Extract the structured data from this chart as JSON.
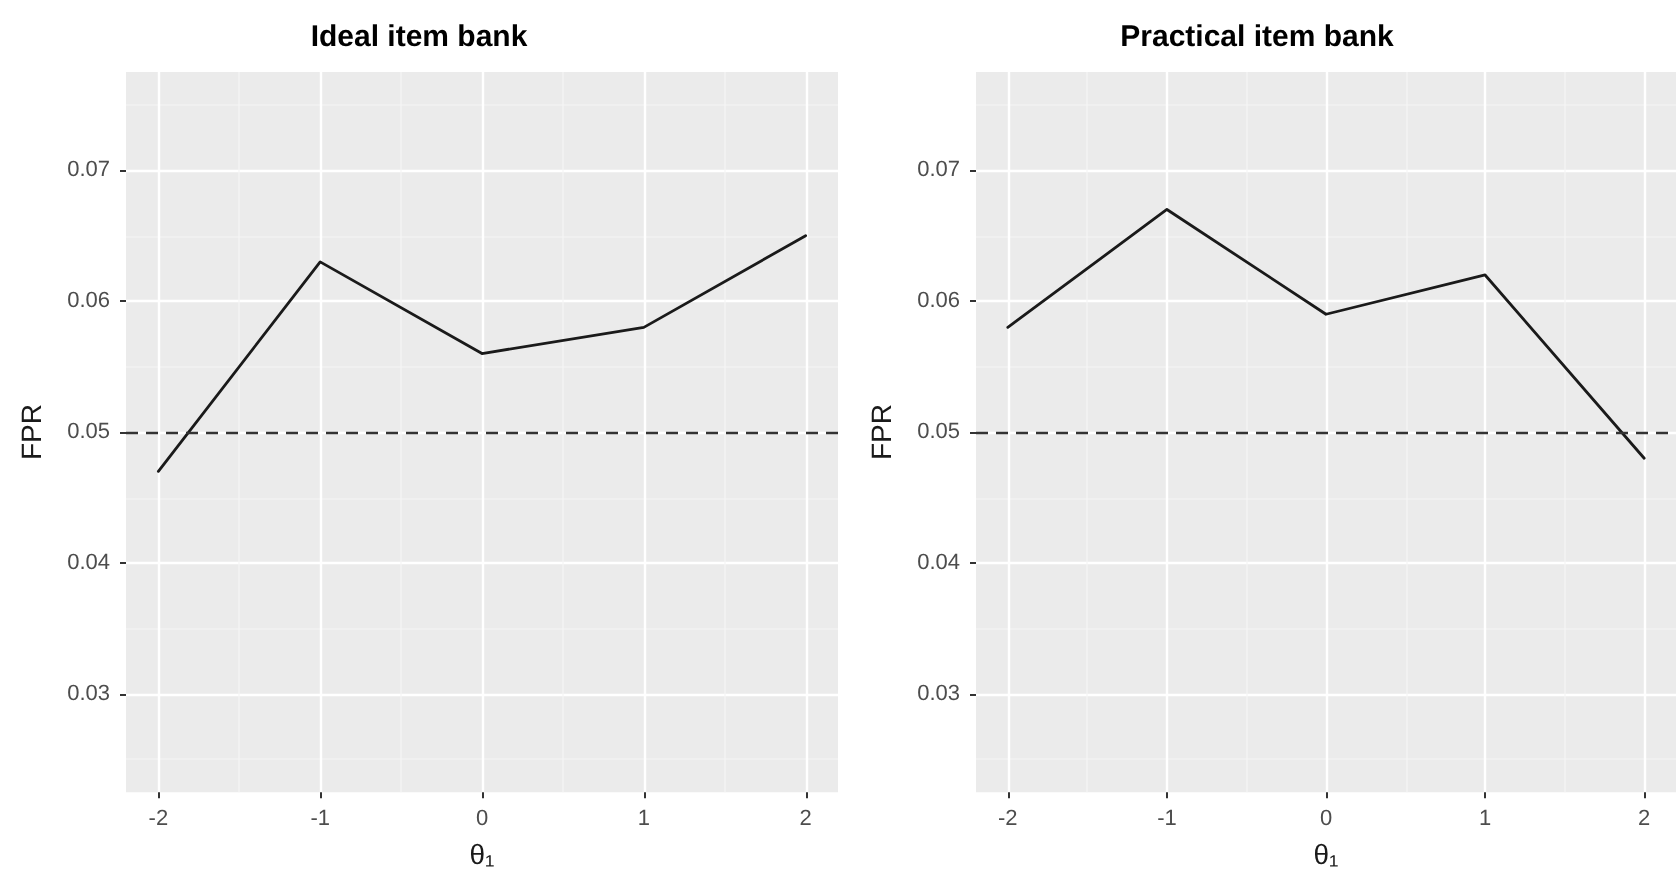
{
  "chart_data": [
    {
      "type": "line",
      "title": "Ideal item bank",
      "xlabel": "θ₁",
      "ylabel": "FPR",
      "x": [
        -2,
        -1,
        0,
        1,
        2
      ],
      "series": [
        {
          "color": "#1a1a1a",
          "values": [
            0.047,
            0.063,
            0.056,
            0.058,
            0.065
          ]
        }
      ],
      "xlim": [
        -2.2,
        2.2
      ],
      "xticks": [
        -2,
        -1,
        0,
        1,
        2
      ],
      "ylim": [
        0.0225,
        0.0775
      ],
      "yticks": [
        0.03,
        0.04,
        0.05,
        0.06,
        0.07
      ],
      "ref_lines": [
        {
          "axis": "y",
          "value": 0.05,
          "color": "#333333",
          "line_style": "dashed"
        }
      ],
      "grid": true,
      "marker": "none",
      "line_style": "solid"
    },
    {
      "type": "line",
      "title": "Practical item bank",
      "xlabel": "θ₁",
      "ylabel": "FPR",
      "x": [
        -2,
        -1,
        0,
        1,
        2
      ],
      "series": [
        {
          "color": "#1a1a1a",
          "values": [
            0.058,
            0.067,
            0.059,
            0.062,
            0.048
          ]
        }
      ],
      "xlim": [
        -2.2,
        2.2
      ],
      "xticks": [
        -2,
        -1,
        0,
        1,
        2
      ],
      "ylim": [
        0.0225,
        0.0775
      ],
      "yticks": [
        0.03,
        0.04,
        0.05,
        0.06,
        0.07
      ],
      "ref_lines": [
        {
          "axis": "y",
          "value": 0.05,
          "color": "#333333",
          "line_style": "dashed"
        }
      ],
      "grid": true,
      "marker": "none",
      "line_style": "solid"
    }
  ]
}
